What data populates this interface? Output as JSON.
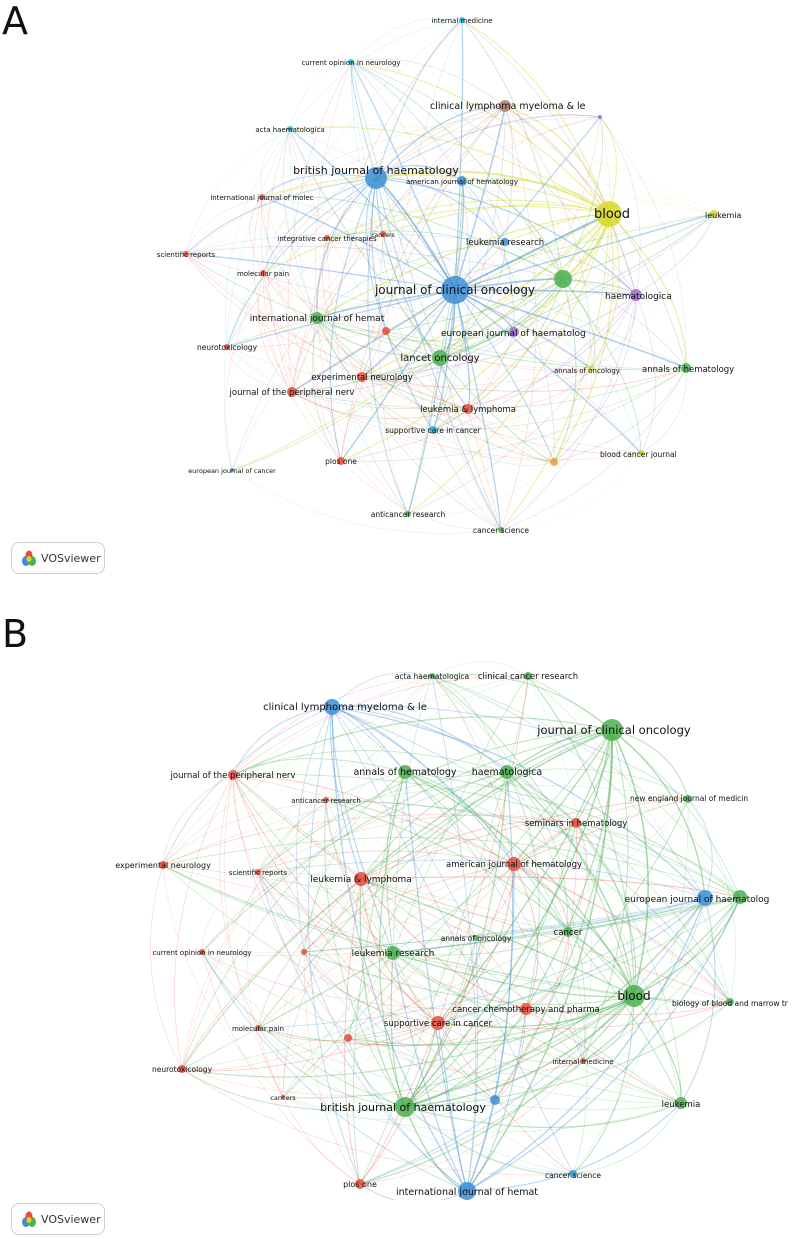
{
  "panels": [
    {
      "letter": "A",
      "logo_text": "VOSviewer",
      "colors": {
        "red": "#e74c3c",
        "green": "#4caf50",
        "blue": "#3d8fd6",
        "yellow": "#d7d629",
        "purple": "#a668d8",
        "cyan": "#2bb5d8",
        "orange": "#f39c3c",
        "brown": "#b07d6a"
      },
      "nodes": [
        {
          "id": "internal medicine",
          "label": "internal medicine",
          "color": "cyan",
          "size": 3,
          "fs": 7
        },
        {
          "id": "current opinion in neurology",
          "label": "current opinion in neurology",
          "color": "cyan",
          "size": 3,
          "fs": 7
        },
        {
          "id": "clinical lymphoma myeloma & le",
          "label": "clinical lymphoma myeloma & le",
          "color": "brown",
          "size": 6,
          "fs": 9.5
        },
        {
          "id": "acta haematologica",
          "label": "acta haematologica",
          "color": "cyan",
          "size": 3,
          "fs": 7
        },
        {
          "id": "british journal of haematology",
          "label": "british journal of haematology",
          "color": "blue",
          "size": 11,
          "fs": 11
        },
        {
          "id": "american journal of hematology",
          "label": "american journal of hematology",
          "color": "blue",
          "size": 5,
          "fs": 7
        },
        {
          "id": "international journal of molec",
          "label": "international journal of molec",
          "color": "red",
          "size": 3,
          "fs": 7
        },
        {
          "id": "blood",
          "label": "blood",
          "color": "yellow",
          "size": 13,
          "fs": 13
        },
        {
          "id": "leukemia",
          "label": "leukemia",
          "color": "yellow",
          "size": 4,
          "fs": 8
        },
        {
          "id": "integrative cancer therapies",
          "label": "integrative cancer therapies",
          "color": "red",
          "size": 3,
          "fs": 7
        },
        {
          "id": "cancers",
          "label": "cancers",
          "color": "red",
          "size": 3,
          "fs": 6
        },
        {
          "id": "leukemia research",
          "label": "leukemia research",
          "color": "blue",
          "size": 4,
          "fs": 8.5
        },
        {
          "id": "scientific reports",
          "label": "scientific reports",
          "color": "red",
          "size": 3,
          "fs": 7
        },
        {
          "id": "molecular pain",
          "label": "molecular pain",
          "color": "red",
          "size": 3,
          "fs": 7
        },
        {
          "id": "journal of clinical oncology",
          "label": "journal of clinical oncology",
          "color": "blue",
          "size": 14,
          "fs": 12
        },
        {
          "id": "haematologica",
          "label": "haematologica",
          "color": "purple",
          "size": 6,
          "fs": 9
        },
        {
          "id": "international journal of hemat",
          "label": "international journal of hemat",
          "color": "green",
          "size": 6,
          "fs": 9
        },
        {
          "id": "european journal of haematolog",
          "label": "european journal of haematolog",
          "color": "purple",
          "size": 5,
          "fs": 9
        },
        {
          "id": "neurotoxicology",
          "label": "neurotoxicology",
          "color": "red",
          "size": 3,
          "fs": 7.5
        },
        {
          "id": "lancet oncology",
          "label": "lancet oncology",
          "color": "green",
          "size": 8,
          "fs": 10
        },
        {
          "id": "experimental neurology",
          "label": "experimental neurology",
          "color": "red",
          "size": 5,
          "fs": 8.5
        },
        {
          "id": "annals of oncology",
          "label": "annals of oncology",
          "color": "yellow",
          "size": 3,
          "fs": 7
        },
        {
          "id": "annals of hematology",
          "label": "annals of hematology",
          "color": "green",
          "size": 5,
          "fs": 8.5
        },
        {
          "id": "journal of the peripheral nerv",
          "label": "journal of the peripheral nerv",
          "color": "red",
          "size": 5,
          "fs": 8.5
        },
        {
          "id": "leukemia & lymphoma",
          "label": "leukemia & lymphoma",
          "color": "red",
          "size": 5,
          "fs": 8.5
        },
        {
          "id": "supportive care in cancer",
          "label": "supportive care in cancer",
          "color": "cyan",
          "size": 4,
          "fs": 7.5
        },
        {
          "id": "blood cancer journal",
          "label": "blood cancer journal",
          "color": "yellow",
          "size": 3,
          "fs": 7.5
        },
        {
          "id": "european journal of cancer",
          "label": "european journal of cancer",
          "color": "blue",
          "size": 2,
          "fs": 6.5
        },
        {
          "id": "plos one",
          "label": "plos one",
          "color": "red",
          "size": 4,
          "fs": 7.5
        },
        {
          "id": "anticancer research",
          "label": "anticancer research",
          "color": "green",
          "size": 3,
          "fs": 7.5
        },
        {
          "id": "cancer science",
          "label": "cancer science",
          "color": "green",
          "size": 3,
          "fs": 7.5
        },
        {
          "id": "u-green-1",
          "label": "",
          "color": "green",
          "size": 9,
          "fs": 7
        },
        {
          "id": "u-purple-1",
          "label": "",
          "color": "purple",
          "size": 2,
          "fs": 7
        },
        {
          "id": "u-orange-1",
          "label": "",
          "color": "orange",
          "size": 4,
          "fs": 7
        },
        {
          "id": "u-red-1",
          "label": "",
          "color": "red",
          "size": 4,
          "fs": 7
        }
      ]
    },
    {
      "letter": "B",
      "logo_text": "VOSviewer",
      "colors": {
        "red": "#e74c3c",
        "green": "#4caf50",
        "blue": "#3d8fd6"
      },
      "nodes": [
        {
          "id": "acta haematologica",
          "label": "acta haematologica",
          "color": "green",
          "size": 3,
          "fs": 7.5
        },
        {
          "id": "clinical cancer research",
          "label": "clinical cancer research",
          "color": "green",
          "size": 4,
          "fs": 8.5
        },
        {
          "id": "clinical lymphoma myeloma & le",
          "label": "clinical lymphoma myeloma & le",
          "color": "blue",
          "size": 8,
          "fs": 10
        },
        {
          "id": "journal of clinical oncology",
          "label": "journal of clinical oncology",
          "color": "green",
          "size": 11,
          "fs": 11.5
        },
        {
          "id": "journal of the peripheral nerv",
          "label": "journal of the peripheral nerv",
          "color": "red",
          "size": 5,
          "fs": 8.5
        },
        {
          "id": "annals of hematology",
          "label": "annals of hematology",
          "color": "green",
          "size": 7,
          "fs": 9.5
        },
        {
          "id": "haematologica",
          "label": "haematologica",
          "color": "green",
          "size": 7,
          "fs": 9.5
        },
        {
          "id": "new england journal of medicin",
          "label": "new england journal of medicin",
          "color": "green",
          "size": 4,
          "fs": 7.5
        },
        {
          "id": "anticancer research",
          "label": "anticancer research",
          "color": "red",
          "size": 3,
          "fs": 7
        },
        {
          "id": "seminars in hematology",
          "label": "seminars in hematology",
          "color": "red",
          "size": 5,
          "fs": 8.5
        },
        {
          "id": "experimental neurology",
          "label": "experimental neurology",
          "color": "red",
          "size": 4,
          "fs": 8
        },
        {
          "id": "scientific reports",
          "label": "scientific reports",
          "color": "red",
          "size": 3,
          "fs": 7
        },
        {
          "id": "leukemia & lymphoma",
          "label": "leukemia & lymphoma",
          "color": "red",
          "size": 7,
          "fs": 9
        },
        {
          "id": "american journal of hematology",
          "label": "american journal of hematology",
          "color": "red",
          "size": 7,
          "fs": 8.5
        },
        {
          "id": "european journal of haematolog",
          "label": "european journal of haematolog",
          "color": "blue",
          "size": 8,
          "fs": 9
        },
        {
          "id": "annals of oncology",
          "label": "annals of oncology",
          "color": "green",
          "size": 3,
          "fs": 7.5
        },
        {
          "id": "cancer",
          "label": "cancer",
          "color": "green",
          "size": 5,
          "fs": 8.5
        },
        {
          "id": "current opinion in neurology",
          "label": "current opinion in neurology",
          "color": "red",
          "size": 3,
          "fs": 7
        },
        {
          "id": "leukemia research",
          "label": "leukemia research",
          "color": "green",
          "size": 7,
          "fs": 9
        },
        {
          "id": "blood",
          "label": "blood",
          "color": "green",
          "size": 11,
          "fs": 12
        },
        {
          "id": "biology of blood and marrow tr",
          "label": "biology of blood and marrow tr",
          "color": "green",
          "size": 4,
          "fs": 7.5
        },
        {
          "id": "molecular pain",
          "label": "molecular pain",
          "color": "red",
          "size": 3,
          "fs": 7
        },
        {
          "id": "cancer chemotherapy and pharma",
          "label": "cancer chemotherapy and pharma",
          "color": "red",
          "size": 6,
          "fs": 8.5
        },
        {
          "id": "supportive care in cancer",
          "label": "supportive care in cancer",
          "color": "red",
          "size": 7,
          "fs": 8.5
        },
        {
          "id": "neurotoxicology",
          "label": "neurotoxicology",
          "color": "red",
          "size": 4,
          "fs": 7.5
        },
        {
          "id": "internal medicine",
          "label": "internal medicine",
          "color": "red",
          "size": 3,
          "fs": 7
        },
        {
          "id": "british journal of haematology",
          "label": "british journal of haematology",
          "color": "green",
          "size": 10,
          "fs": 11
        },
        {
          "id": "leukemia",
          "label": "leukemia",
          "color": "green",
          "size": 6,
          "fs": 8.5
        },
        {
          "id": "cancers",
          "label": "cancers",
          "color": "red",
          "size": 2,
          "fs": 6.5
        },
        {
          "id": "cancer science",
          "label": "cancer science",
          "color": "blue",
          "size": 4,
          "fs": 7.5
        },
        {
          "id": "plos one",
          "label": "plos one",
          "color": "red",
          "size": 5,
          "fs": 8
        },
        {
          "id": "international journal of hemat",
          "label": "international journal of hemat",
          "color": "blue",
          "size": 9,
          "fs": 9.5
        },
        {
          "id": "u-green-b1",
          "label": "",
          "color": "green",
          "size": 7,
          "fs": 7
        },
        {
          "id": "u-blue-b1",
          "label": "",
          "color": "blue",
          "size": 5,
          "fs": 7
        },
        {
          "id": "u-red-b1",
          "label": "",
          "color": "red",
          "size": 4,
          "fs": 7
        },
        {
          "id": "u-red-b2",
          "label": "",
          "color": "red",
          "size": 3,
          "fs": 7
        }
      ]
    }
  ]
}
